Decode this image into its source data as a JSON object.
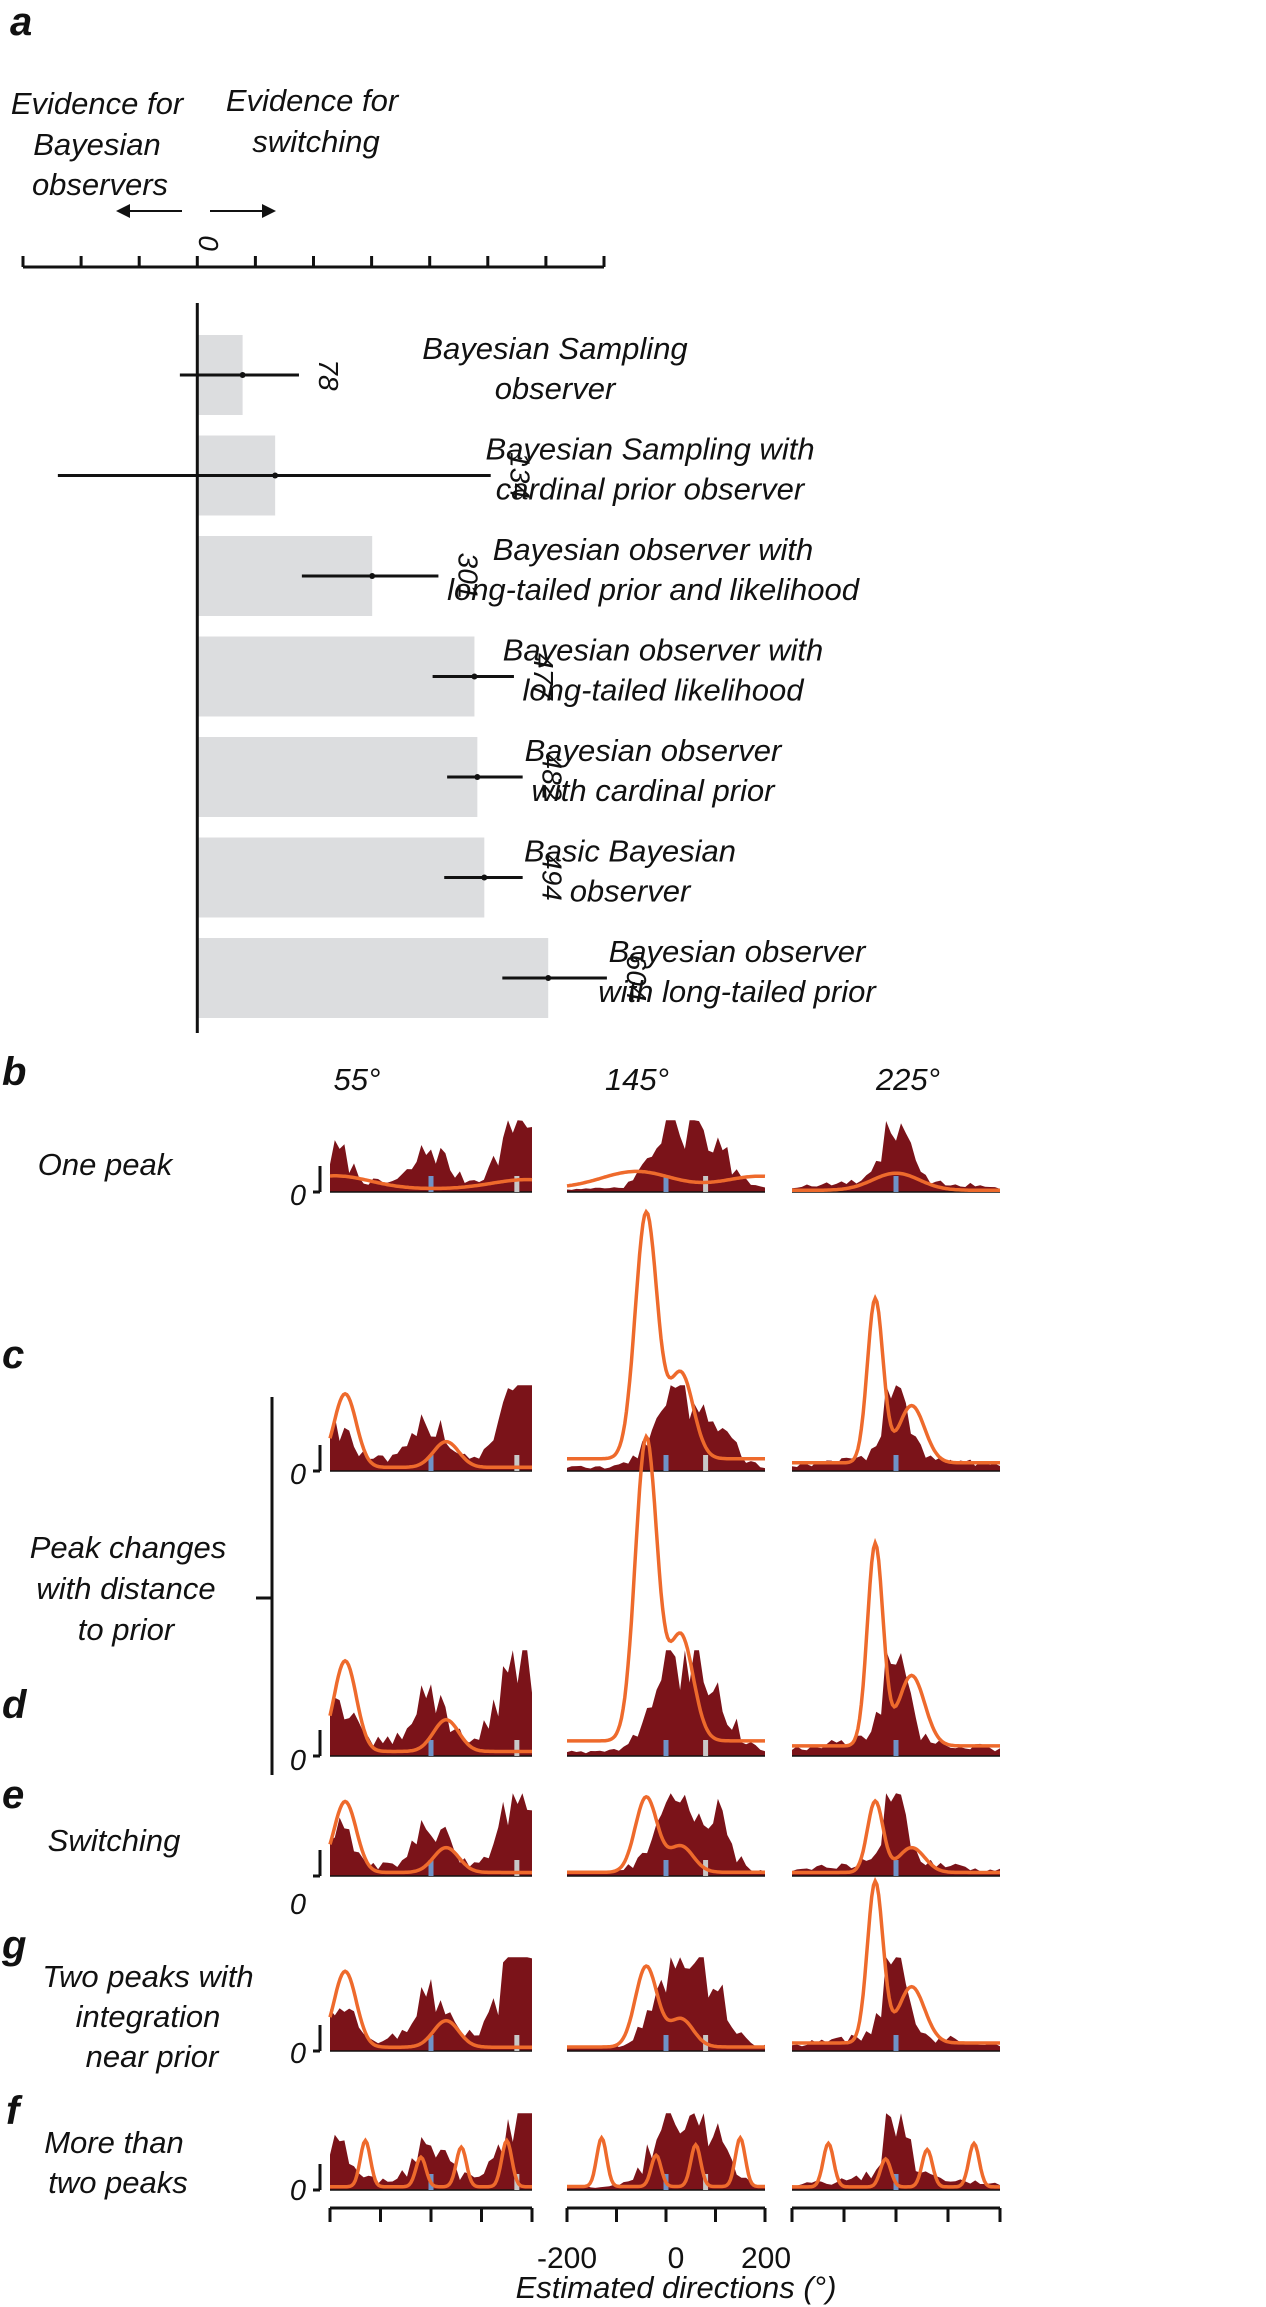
{
  "panels": {
    "a": "a",
    "b": "b",
    "c": "c",
    "d": "d",
    "e": "e",
    "g": "g",
    "f": "f"
  },
  "panel_a": {
    "left_arrow_label": [
      "Evidence for",
      "Bayesian",
      "observers"
    ],
    "right_arrow_label": [
      "Evidence for",
      "switching"
    ],
    "zero_label": "0"
  },
  "stimulus_headers": [
    "55°",
    "145°",
    "225°"
  ],
  "row_labels": {
    "b": [
      "One peak"
    ],
    "cd": [
      "Peak changes",
      "with distance",
      "to prior"
    ],
    "e": [
      "Switching"
    ],
    "g": [
      "Two peaks with",
      "integration",
      "near prior"
    ],
    "f": [
      "More than",
      "two peaks"
    ]
  },
  "zero_labels": {
    "b": "0",
    "c": "0",
    "d": "0",
    "e": "0",
    "g": "0",
    "f": "0"
  },
  "x_axis": {
    "label": "Estimated directions (°)",
    "tick_labels": [
      "-200",
      "0",
      "200"
    ]
  },
  "colors": {
    "bar": "#dcdddf",
    "data_fill": "#7b1319",
    "model_line": "#ee6a2c",
    "prior_marker": "#c8c8c8",
    "motion_marker": "#6f93c8",
    "axis": "#111111"
  },
  "chart_data": [
    {
      "type": "bar",
      "orientation": "horizontal",
      "panel": "a",
      "categories": [
        "Bayesian Sampling observer",
        "Bayesian Sampling with cardinal prior observer",
        "Bayesian observer with long-tailed prior and likelihood",
        "Bayesian observer with long-tailed likelihood",
        "Bayesian observer with cardinal prior",
        "Basic Bayesian observer",
        "Bayesian observer with long-tailed prior"
      ],
      "category_lines": [
        [
          "Bayesian Sampling",
          "observer"
        ],
        [
          "Bayesian Sampling with",
          "cardinal prior observer"
        ],
        [
          "Bayesian observer with",
          "long-tailed prior and likelihood"
        ],
        [
          "Bayesian observer with",
          "long-tailed likelihood"
        ],
        [
          "Bayesian observer",
          "with cardinal prior"
        ],
        [
          "Basic Bayesian",
          "observer"
        ],
        [
          "Bayesian observer",
          "with long-tailed prior"
        ]
      ],
      "values": [
        78,
        134,
        301,
        477,
        482,
        494,
        604
      ],
      "value_labels": [
        "78",
        "134",
        "301",
        "477",
        "482",
        "494",
        "604"
      ],
      "error_low": [
        -30,
        -240,
        180,
        405,
        430,
        425,
        525
      ],
      "error_high": [
        175,
        505,
        415,
        545,
        560,
        560,
        705
      ],
      "xlim": [
        -300,
        700
      ],
      "xticks": [
        -300,
        -200,
        -100,
        0,
        100,
        200,
        300,
        400,
        500,
        600,
        700
      ],
      "xlabel": "",
      "ylabel": ""
    },
    {
      "type": "area",
      "panels": [
        "b",
        "c",
        "d",
        "e",
        "g",
        "f"
      ],
      "x_range": [
        -200,
        200
      ],
      "x_ticks": [
        -200,
        -100,
        0,
        100,
        200
      ],
      "prior_direction": 225,
      "motion_directions": [
        55,
        145,
        225
      ],
      "description_of_series": "data histogram (filled) and model prediction (line) per condition",
      "rows": [
        {
          "panel": "b",
          "model_peak_scale": [
            0.55,
            0.7,
            0.5
          ]
        },
        {
          "panel": "c",
          "model_peak_scale": [
            0.9,
            3.0,
            2.0
          ]
        },
        {
          "panel": "d",
          "model_peak_scale": [
            0.9,
            3.0,
            2.0
          ]
        },
        {
          "panel": "e",
          "model_peak_scale": [
            0.9,
            0.95,
            0.9
          ]
        },
        {
          "panel": "g",
          "model_peak_scale": [
            0.85,
            0.9,
            1.8
          ]
        },
        {
          "panel": "f",
          "model_peak_scale": [
            0.9,
            0.95,
            0.85
          ]
        }
      ]
    }
  ]
}
